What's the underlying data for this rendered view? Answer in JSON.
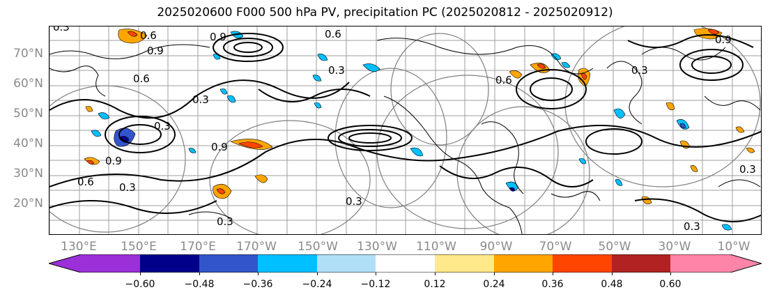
{
  "title": "2025020600 F000 500 hPa PV, precipitation PC (2025020812 - 2025020912)",
  "map": {
    "lat_labels": [
      "70°N",
      "60°N",
      "50°N",
      "40°N",
      "30°N",
      "20°N"
    ],
    "lon_labels": [
      "130°E",
      "150°E",
      "170°E",
      "170°W",
      "150°W",
      "130°W",
      "110°W",
      "90°W",
      "70°W",
      "50°W",
      "30°W",
      "10°W"
    ],
    "pv_contour_labels": [
      "0.6",
      "0.9",
      "0.3",
      "0.6",
      "0.9",
      "0.3",
      "0.6",
      "0.3",
      "0.9",
      "0.3",
      "0.6",
      "0.3",
      "0.9",
      "0.3",
      "0.3",
      "0.9",
      "0.3",
      "0.6",
      "0.3",
      "0.3"
    ],
    "colors": {
      "contour": "#000000",
      "coast": "#000000",
      "grid": "#9e9e9e",
      "rings": "#7f7f7f"
    }
  },
  "colorbar": {
    "tick_labels": [
      "−0.60",
      "−0.48",
      "−0.36",
      "−0.24",
      "−0.12",
      "0.12",
      "0.24",
      "0.36",
      "0.48",
      "0.60"
    ],
    "bins": [
      {
        "color": "#9b30d8"
      },
      {
        "color": "#00008b"
      },
      {
        "color": "#3355cc"
      },
      {
        "color": "#00bfff"
      },
      {
        "color": "#b0e0f8"
      },
      {
        "color": "#ffffff"
      },
      {
        "color": "#ffe98a"
      },
      {
        "color": "#ffa500"
      },
      {
        "color": "#ff4500"
      },
      {
        "color": "#b22222"
      },
      {
        "color": "#ff85a8"
      },
      {
        "color": "#ff85a8"
      }
    ]
  }
}
